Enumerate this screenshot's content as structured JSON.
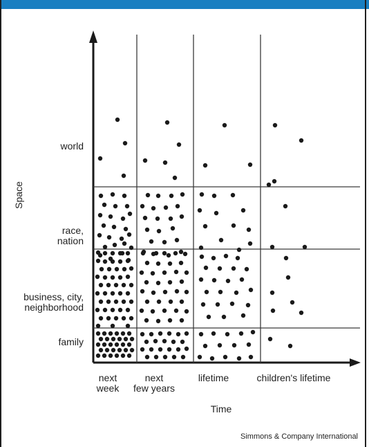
{
  "chart_data": {
    "type": "scatter",
    "xlabel": "Time",
    "ylabel": "Space",
    "columns": [
      "next\nweek",
      "next\nfew years",
      "lifetime",
      "children's lifetime"
    ],
    "rows": [
      "world",
      "race,\nnation",
      "business, city,\nneighborhood",
      "family"
    ]
  },
  "credit": "Simmons & Company International",
  "colors": {
    "accent_bar": "#1a7fc1",
    "ink": "#1a1a1a"
  }
}
